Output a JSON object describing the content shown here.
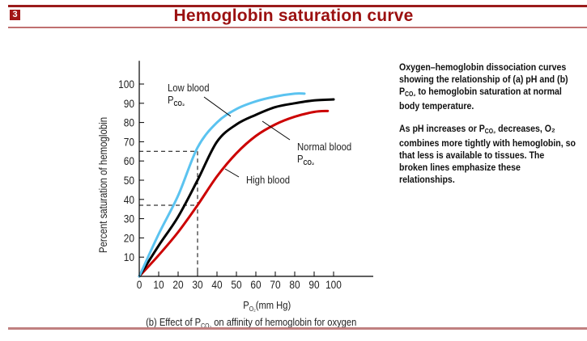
{
  "header": {
    "badge": "3",
    "title": "Hemoglobin saturation curve"
  },
  "caption": {
    "p1_a": "Oxygen–hemoglobin dissociation curves",
    "p1_b": "showing the relationship of (a) pH and (b)",
    "p1_c_pre": "P",
    "p1_c_sub": "CO₂",
    "p1_c_post": " to hemoglobin saturation at normal",
    "p1_d": "body temperature.",
    "p2_a_pre": "As pH increases or P",
    "p2_a_sub": "CO₂",
    "p2_a_post": "  decreases, O₂",
    "p2_b": "combines more tightly with hemoglobin, so",
    "p2_c": "that less is available to tissues. The",
    "p2_d": "broken lines emphasize these",
    "p2_e": "relationships."
  },
  "colors": {
    "title": "#9b1010",
    "low": "#5bc3f0",
    "normal": "#000000",
    "high": "#cc0000"
  },
  "chart_data": {
    "type": "line",
    "title": "(b) Effect of P_CO2 on affinity of hemoglobin for oxygen",
    "figure_caption_pre": "(b) Effect of P",
    "figure_caption_sub": "CO₂",
    "figure_caption_post": " on affinity of hemoglobin for oxygen",
    "xlabel_pre": "P",
    "xlabel_sub": "O₂",
    "xlabel_post": "(mm Hg)",
    "ylabel": "Percent saturation of hemoglobin",
    "xlim": [
      0,
      120
    ],
    "ylim": [
      0,
      110
    ],
    "x_ticks": [
      "0",
      "10",
      "20",
      "30",
      "40",
      "50",
      "60",
      "70",
      "80",
      "90",
      "100"
    ],
    "y_ticks": [
      "10",
      "20",
      "30",
      "40",
      "50",
      "60",
      "70",
      "80",
      "90",
      "100"
    ],
    "grid": false,
    "series": [
      {
        "name": "Low blood P_CO2",
        "label_a": "Low blood",
        "label_b_pre": "P",
        "label_b_sub": "CO₂",
        "color_key": "low",
        "x": [
          0,
          10,
          20,
          30,
          40,
          50,
          60,
          70,
          80,
          85
        ],
        "y": [
          0,
          22,
          42,
          67,
          80,
          87,
          91,
          93.5,
          95,
          95
        ]
      },
      {
        "name": "Normal blood P_CO2",
        "label_a": "Normal blood",
        "label_b_pre": "P",
        "label_b_sub": "CO₂",
        "color_key": "normal",
        "x": [
          0,
          10,
          20,
          30,
          40,
          50,
          60,
          70,
          80,
          90,
          100
        ],
        "y": [
          0,
          16,
          31,
          50,
          70,
          79,
          84,
          88,
          90,
          91.5,
          92
        ]
      },
      {
        "name": "High blood",
        "label_a": "High blood",
        "color_key": "high",
        "x": [
          0,
          10,
          20,
          30,
          40,
          50,
          60,
          70,
          80,
          90,
          97
        ],
        "y": [
          0,
          11,
          23,
          37,
          52,
          64,
          73,
          79,
          83,
          85.5,
          86
        ]
      }
    ],
    "reference_lines": {
      "x": 30,
      "y_values": [
        65,
        37
      ]
    }
  }
}
